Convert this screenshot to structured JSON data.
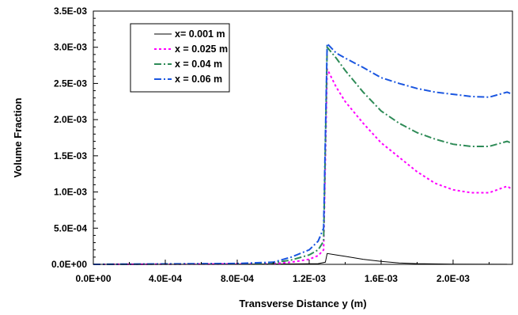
{
  "chart_data": {
    "type": "line",
    "xlabel": "Transverse Distance y (m)",
    "ylabel": "Volume Fraction",
    "xlim": [
      0,
      0.00233
    ],
    "ylim": [
      0,
      0.0035
    ],
    "x_ticks": [
      0,
      0.0004,
      0.0008,
      0.0012,
      0.0016,
      0.002
    ],
    "x_tick_labels": [
      "0.0E+00",
      "4.0E-04",
      "8.0E-04",
      "1.2E-03",
      "1.6E-03",
      "2.0E-03"
    ],
    "y_ticks": [
      0,
      0.0005,
      0.001,
      0.0015,
      0.002,
      0.0025,
      0.003,
      0.0035
    ],
    "y_tick_labels": [
      "0.0E+00",
      "5.0E-04",
      "1.0E-03",
      "1.5E-03",
      "2.0E-03",
      "2.5E-03",
      "3.0E-03",
      "3.5E-03"
    ],
    "grid": false,
    "legend_position": "top-left",
    "series": [
      {
        "name": "x= 0.001 m",
        "color": "#000000",
        "dash": "solid",
        "points": [
          [
            0,
            0
          ],
          [
            0.0008,
            2e-06
          ],
          [
            0.0011,
            5e-06
          ],
          [
            0.00125,
            1e-05
          ],
          [
            0.00129,
            3e-05
          ],
          [
            0.0013,
            0.00015
          ],
          [
            0.00135,
            0.00013
          ],
          [
            0.0014,
            0.00011
          ],
          [
            0.0015,
            7e-05
          ],
          [
            0.0016,
            4e-05
          ],
          [
            0.0017,
            2e-05
          ],
          [
            0.0018,
            1e-05
          ],
          [
            0.002,
            3e-06
          ],
          [
            0.0023,
            1e-06
          ]
        ]
      },
      {
        "name": "x = 0.025 m",
        "color": "#ff00ff",
        "dash": "dotted",
        "points": [
          [
            0,
            0
          ],
          [
            0.0008,
            5e-06
          ],
          [
            0.001,
            1e-05
          ],
          [
            0.0011,
            3e-05
          ],
          [
            0.0012,
            7e-05
          ],
          [
            0.00125,
            0.00012
          ],
          [
            0.00128,
            0.0002
          ],
          [
            0.0013,
            0.0027
          ],
          [
            0.00135,
            0.00245
          ],
          [
            0.0014,
            0.00225
          ],
          [
            0.0015,
            0.00195
          ],
          [
            0.0016,
            0.00168
          ],
          [
            0.0017,
            0.00148
          ],
          [
            0.0018,
            0.00128
          ],
          [
            0.0019,
            0.00112
          ],
          [
            0.002,
            0.00103
          ],
          [
            0.0021,
            0.00099
          ],
          [
            0.0022,
            0.00099
          ],
          [
            0.0023,
            0.00108
          ],
          [
            0.00232,
            0.00105
          ]
        ]
      },
      {
        "name": "x = 0.04 m",
        "color": "#2e8b57",
        "dash": "dashdot",
        "points": [
          [
            0,
            0
          ],
          [
            0.0008,
            8e-06
          ],
          [
            0.001,
            2e-05
          ],
          [
            0.0011,
            6e-05
          ],
          [
            0.0012,
            0.00013
          ],
          [
            0.00125,
            0.0002
          ],
          [
            0.00128,
            0.00032
          ],
          [
            0.0013,
            0.003
          ],
          [
            0.00135,
            0.00285
          ],
          [
            0.0014,
            0.00268
          ],
          [
            0.0015,
            0.00238
          ],
          [
            0.0016,
            0.00212
          ],
          [
            0.0017,
            0.00195
          ],
          [
            0.0018,
            0.00182
          ],
          [
            0.0019,
            0.00173
          ],
          [
            0.002,
            0.00166
          ],
          [
            0.0021,
            0.00163
          ],
          [
            0.0022,
            0.00163
          ],
          [
            0.0023,
            0.0017
          ],
          [
            0.00232,
            0.00168
          ]
        ]
      },
      {
        "name": "x = 0.06 m",
        "color": "#1a56e0",
        "dash": "dashdot",
        "points": [
          [
            0,
            0
          ],
          [
            0.0008,
            1.2e-05
          ],
          [
            0.001,
            3e-05
          ],
          [
            0.0011,
            0.0001
          ],
          [
            0.0012,
            0.0002
          ],
          [
            0.00125,
            0.00032
          ],
          [
            0.00128,
            0.0005
          ],
          [
            0.0013,
            0.00305
          ],
          [
            0.00135,
            0.00292
          ],
          [
            0.0014,
            0.00285
          ],
          [
            0.0015,
            0.00272
          ],
          [
            0.0016,
            0.00258
          ],
          [
            0.0017,
            0.0025
          ],
          [
            0.0018,
            0.00243
          ],
          [
            0.0019,
            0.00238
          ],
          [
            0.002,
            0.00235
          ],
          [
            0.0021,
            0.00232
          ],
          [
            0.0022,
            0.00231
          ],
          [
            0.0023,
            0.00238
          ],
          [
            0.00232,
            0.00236
          ]
        ]
      }
    ]
  }
}
